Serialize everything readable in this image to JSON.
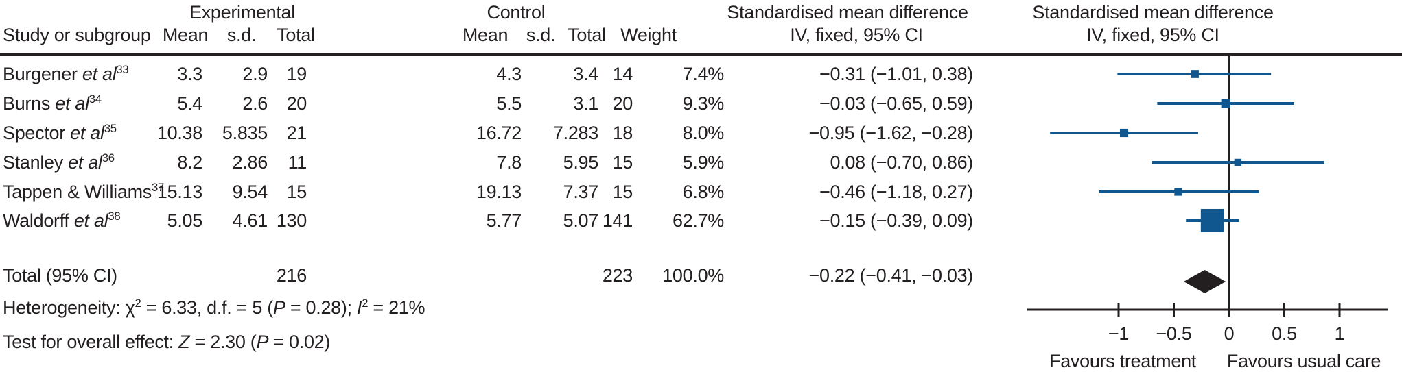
{
  "headers": {
    "study_col": "Study or subgroup",
    "group_experimental": "Experimental",
    "group_control": "Control",
    "mean": "Mean",
    "sd": "s.d.",
    "total": "Total",
    "weight": "Weight",
    "smd_line1_text": "Standardised mean difference",
    "smd_line2_text": "IV, fixed, 95% CI",
    "smd_line1_plot": "Standardised mean difference",
    "smd_line2_plot": "IV, fixed, 95% CI"
  },
  "studies": [
    {
      "name": "Burgener ",
      "etal": "et al",
      "ref": "33",
      "mean_e": "3.3",
      "sd_e": "2.9",
      "total_e": "19",
      "mean_c": "4.3",
      "sd_c": "3.4",
      "total_c": "14",
      "weight": "7.4%",
      "smd": "−0.31 (−1.01, 0.38)"
    },
    {
      "name": "Burns ",
      "etal": "et al",
      "ref": "34",
      "mean_e": "5.4",
      "sd_e": "2.6",
      "total_e": "20",
      "mean_c": "5.5",
      "sd_c": "3.1",
      "total_c": "20",
      "weight": "9.3%",
      "smd": "−0.03 (−0.65, 0.59)"
    },
    {
      "name": "Spector ",
      "etal": "et al",
      "ref": "35",
      "mean_e": "10.38",
      "sd_e": "5.835",
      "total_e": "21",
      "mean_c": "16.72",
      "sd_c": "7.283",
      "total_c": "18",
      "weight": "8.0%",
      "smd": "−0.95 (−1.62, −0.28)"
    },
    {
      "name": "Stanley ",
      "etal": "et al",
      "ref": "36",
      "mean_e": "8.2",
      "sd_e": "2.86",
      "total_e": "11",
      "mean_c": "7.8",
      "sd_c": "5.95",
      "total_c": "15",
      "weight": "5.9%",
      "smd": "0.08 (−0.70, 0.86)"
    },
    {
      "name": "Tappen & Williams",
      "etal": "",
      "ref": "37",
      "mean_e": "15.13",
      "sd_e": "9.54",
      "total_e": "15",
      "mean_c": "19.13",
      "sd_c": "7.37",
      "total_c": "15",
      "weight": "6.8%",
      "smd": "−0.46 (−1.18, 0.27)"
    },
    {
      "name": "Waldorff ",
      "etal": "et al",
      "ref": "38",
      "mean_e": "5.05",
      "sd_e": "4.61",
      "total_e": "130",
      "mean_c": "5.77",
      "sd_c": "5.07",
      "total_c": "141",
      "weight": "62.7%",
      "smd": "−0.15 (−0.39, 0.09)"
    }
  ],
  "total_row": {
    "label": "Total (95% CI)",
    "total_e": "216",
    "total_c": "223",
    "weight": "100.0%",
    "smd": "−0.22 (−0.41, −0.03)"
  },
  "heterogeneity": {
    "p1": "Heterogeneity: χ",
    "sup1": "2",
    "p2": " = 6.33, d.f. = 5 (",
    "p3": "P",
    "p4": " = 0.28); ",
    "p5": "I",
    "sup2": "2",
    "p6": " = 21%"
  },
  "overall_effect": {
    "p1": "Test for overall effect: ",
    "p2": "Z",
    "p3": " = 2.30 (",
    "p4": "P",
    "p5": " = 0.02)"
  },
  "chart_data": {
    "type": "forest",
    "effect_measure": "Standardised mean difference",
    "model": "IV, fixed, 95% CI",
    "marker_color": "#10578f",
    "diamond_color": "#231f20",
    "axis": {
      "range": [
        -1.83,
        1.44
      ],
      "ticks": [
        {
          "value": -1,
          "label": "−1"
        },
        {
          "value": -0.5,
          "label": "−0.5"
        },
        {
          "value": 0,
          "label": "0"
        },
        {
          "value": 0.5,
          "label": "0.5"
        },
        {
          "value": 1,
          "label": "1"
        }
      ],
      "label_left": "Favours treatment",
      "label_right": "Favours usual care"
    },
    "studies": [
      {
        "label": "Burgener et al 33",
        "est": -0.31,
        "lo": -1.01,
        "hi": 0.38,
        "weight": 7.4
      },
      {
        "label": "Burns et al 34",
        "est": -0.03,
        "lo": -0.65,
        "hi": 0.59,
        "weight": 9.3
      },
      {
        "label": "Spector et al 35",
        "est": -0.95,
        "lo": -1.62,
        "hi": -0.28,
        "weight": 8.0
      },
      {
        "label": "Stanley et al 36",
        "est": 0.08,
        "lo": -0.7,
        "hi": 0.86,
        "weight": 5.9
      },
      {
        "label": "Tappen & Williams 37",
        "est": -0.46,
        "lo": -1.18,
        "hi": 0.27,
        "weight": 6.8
      },
      {
        "label": "Waldorff et al 38",
        "est": -0.15,
        "lo": -0.39,
        "hi": 0.09,
        "weight": 62.7
      }
    ],
    "total": {
      "label": "Total (95% CI)",
      "est": -0.22,
      "lo": -0.41,
      "hi": -0.03,
      "weight": 100.0
    }
  }
}
